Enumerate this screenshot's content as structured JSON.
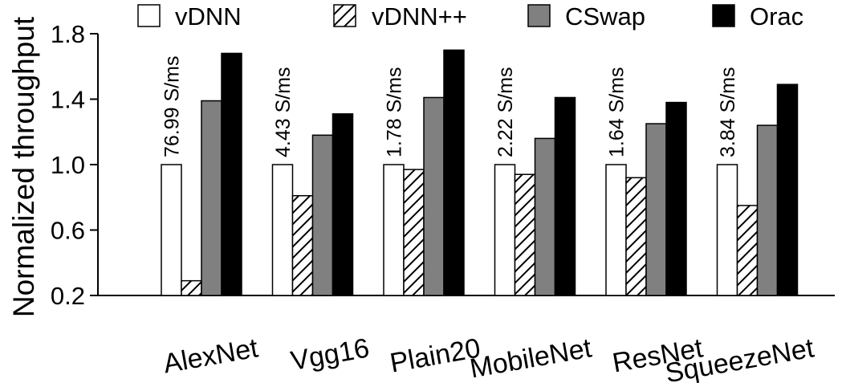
{
  "chart_data": {
    "type": "bar",
    "title": "",
    "xlabel": "",
    "ylabel": "Normalized throughput",
    "ylim": [
      0.2,
      1.8
    ],
    "yticks": [
      "0.2",
      "0.6",
      "1.0",
      "1.4",
      "1.8"
    ],
    "grid": false,
    "legend_position": "top",
    "categories": [
      "AlexNet",
      "Vgg16",
      "Plain20",
      "MobileNet",
      "ResNet",
      "SqueezeNet"
    ],
    "series": [
      {
        "name": "vDNN",
        "style": "white",
        "values": [
          1.0,
          1.0,
          1.0,
          1.0,
          1.0,
          1.0
        ]
      },
      {
        "name": "vDNN++",
        "style": "hatched",
        "values": [
          0.29,
          0.81,
          0.97,
          0.94,
          0.92,
          0.75
        ]
      },
      {
        "name": "CSwap",
        "style": "gray",
        "values": [
          1.39,
          1.18,
          1.41,
          1.16,
          1.25,
          1.24
        ]
      },
      {
        "name": "Orac",
        "style": "black",
        "values": [
          1.68,
          1.31,
          1.7,
          1.41,
          1.38,
          1.49
        ]
      }
    ],
    "annotations": [
      "76.99 S/ms",
      "4.43 S/ms",
      "1.78 S/ms",
      "2.22 S/ms",
      "1.64 S/ms",
      "3.84 S/ms"
    ],
    "colors": {
      "white": "#ffffff",
      "gray": "#808080",
      "black": "#000000",
      "stroke": "#000000"
    }
  }
}
